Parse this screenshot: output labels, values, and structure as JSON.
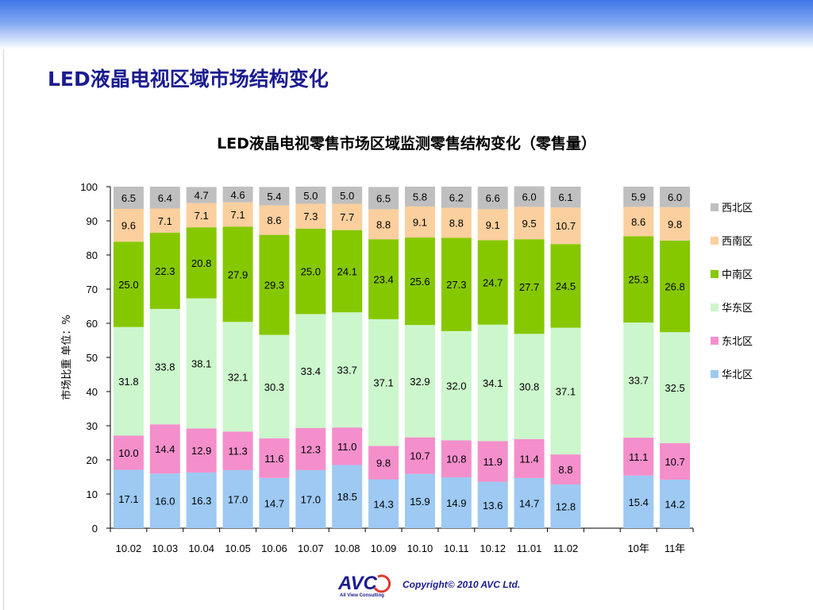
{
  "page": {
    "title": "LED液晶电视区域市场结构变化",
    "copyright": "Copyright© 2010 AVC Ltd.",
    "logo_text": "AVC",
    "logo_subtext": "All View Consulting"
  },
  "chart_data": {
    "type": "bar",
    "stacked": true,
    "title": "LED液晶电视零售市场区域监测零售结构变化（零售量）",
    "ylabel": "市场比重 单位：%",
    "xlabel": "",
    "ylim": [
      0,
      100
    ],
    "yticks": [
      0,
      10,
      20,
      30,
      40,
      50,
      60,
      70,
      80,
      90,
      100
    ],
    "legend_position": "right",
    "grid": false,
    "categories": [
      "10.02",
      "10.03",
      "10.04",
      "10.05",
      "10.06",
      "10.07",
      "10.08",
      "10.09",
      "10.10",
      "10.11",
      "10.12",
      "11.01",
      "11.02",
      "",
      "10年",
      "11年"
    ],
    "series": [
      {
        "name": "华北区",
        "color": "#9dc9f3",
        "values": [
          17.1,
          16.0,
          16.3,
          17.0,
          14.7,
          17.0,
          18.5,
          14.3,
          15.9,
          14.9,
          13.6,
          14.7,
          12.8,
          null,
          15.4,
          14.2
        ]
      },
      {
        "name": "东北区",
        "color": "#f48fcb",
        "values": [
          10.0,
          14.4,
          12.9,
          11.3,
          11.6,
          12.3,
          11.0,
          9.8,
          10.7,
          10.8,
          11.9,
          11.4,
          8.8,
          null,
          11.1,
          10.7
        ]
      },
      {
        "name": "华东区",
        "color": "#ccf6cc",
        "values": [
          31.8,
          33.8,
          38.1,
          32.1,
          30.3,
          33.4,
          33.7,
          37.1,
          32.9,
          32.0,
          34.1,
          30.8,
          37.1,
          null,
          33.7,
          32.5
        ]
      },
      {
        "name": "中南区",
        "color": "#86c800",
        "values": [
          25.0,
          22.3,
          20.8,
          27.9,
          29.3,
          25.0,
          24.1,
          23.4,
          25.6,
          27.3,
          24.7,
          27.7,
          24.5,
          null,
          25.3,
          26.8
        ]
      },
      {
        "name": "西南区",
        "color": "#fbcf9e",
        "values": [
          9.6,
          7.1,
          7.1,
          7.1,
          8.6,
          7.3,
          7.7,
          8.8,
          9.1,
          8.8,
          9.1,
          9.5,
          10.7,
          null,
          8.6,
          9.8
        ]
      },
      {
        "name": "西北区",
        "color": "#bfbfbf",
        "values": [
          6.5,
          6.4,
          4.7,
          4.6,
          5.4,
          5.0,
          5.0,
          6.5,
          5.8,
          6.2,
          6.6,
          6.0,
          6.1,
          null,
          5.9,
          6.0
        ]
      }
    ]
  }
}
